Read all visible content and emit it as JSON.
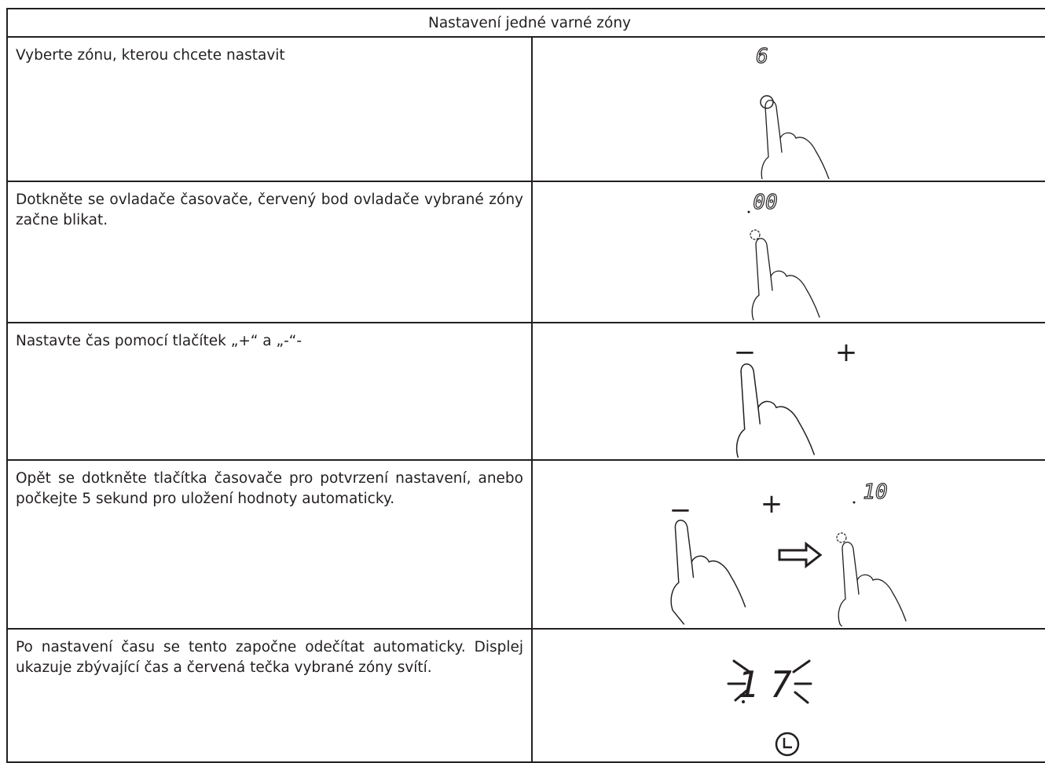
{
  "table": {
    "title": "Nastavení jedné varné zóny",
    "rows": [
      {
        "instruction": "Vyberte zónu, kterou chcete nastavit",
        "display": "6"
      },
      {
        "instruction": "Dotkněte se ovladače časovače, červený bod ovladače vybrané zóny začne blikat.",
        "display": "00"
      },
      {
        "instruction": "Nastavte čas pomocí tlačítek „+“ a „-“-",
        "minus": "−",
        "plus": "+"
      },
      {
        "instruction": "Opět se dotkněte tlačítka časovače pro potvrzení nastavení, anebo počkejte 5 sekund pro uložení hodnoty automaticky.",
        "minus": "−",
        "plus": "+",
        "display": "10"
      },
      {
        "instruction": "Po nastavení času se tento započne odečítat automaticky. Displej ukazuje zbývající čas a červená tečka vybrané zóny svítí.",
        "display": "17"
      }
    ]
  }
}
